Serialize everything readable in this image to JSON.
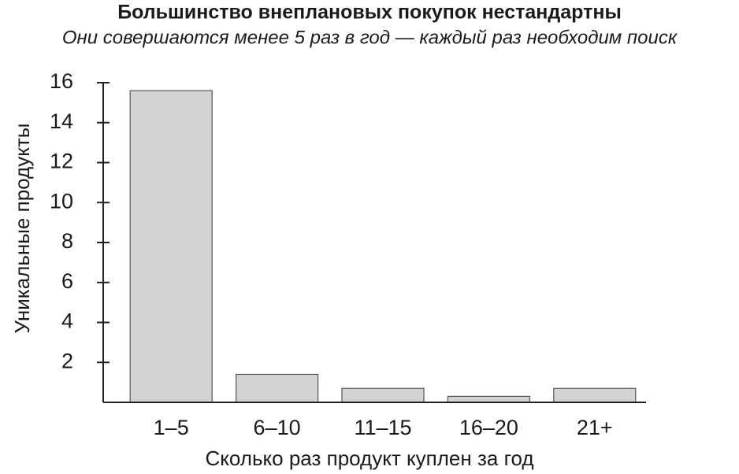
{
  "chart_data": {
    "type": "bar",
    "title": "Большинство внеплановых покупок нестандартны",
    "subtitle": "Они совершаются менее 5 раз в год — каждый раз необходим поиск",
    "x_label": "Сколько раз продукт куплен за год",
    "y_label": "Уникальные продукты",
    "categories": [
      "1–5",
      "6–10",
      "11–15",
      "16–20",
      "21+"
    ],
    "values": [
      15.6,
      1.4,
      0.7,
      0.3,
      0.7
    ],
    "color": "#d3d3d3",
    "ylim": [
      0,
      16
    ],
    "yticks": [
      2,
      4,
      6,
      8,
      10,
      12,
      14,
      16
    ],
    "grid": false
  }
}
